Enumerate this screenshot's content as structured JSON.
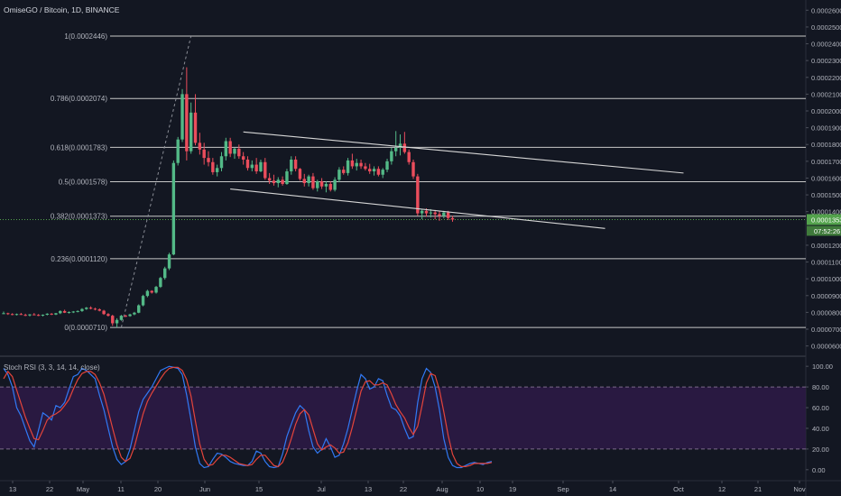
{
  "header": {
    "title": "OmiseGO / Bitcoin, 1D, BINANCE"
  },
  "colors": {
    "background": "#131722",
    "up": "#53b987",
    "down": "#eb4d5c",
    "fib_line": "#c8c8c8",
    "channel": "#d6d6d6",
    "rsi_k": "#3179f5",
    "rsi_d": "#e4443b",
    "rsi_band": "#2e1a47",
    "price_badge": "#53a24c"
  },
  "chart_data": [
    {
      "type": "candlestick",
      "title": "OmiseGO / Bitcoin, 1D, BINANCE",
      "y_axis_ticks": [
        "0.0002600",
        "0.0002500",
        "0.0002400",
        "0.0002300",
        "0.0002200",
        "0.0002100",
        "0.0002000",
        "0.0001900",
        "0.0001800",
        "0.0001700",
        "0.0001600",
        "0.0001500",
        "0.0001400",
        "0.0001353",
        "0.0001200",
        "0.0001100",
        "0.0001000",
        "0.0000900",
        "0.0000800",
        "0.0000700",
        "0.0000600"
      ],
      "ylim": [
        5.55e-05,
        0.000265
      ],
      "x_axis_ticks": [
        "13",
        "22",
        "May",
        "11",
        "20",
        "Jun",
        "15",
        "Jul",
        "13",
        "22",
        "Aug",
        "10",
        "19",
        "Sep",
        "14",
        "Oct",
        "12",
        "21",
        "Nov"
      ],
      "current_price": "0.0001353",
      "countdown": "07:52:26",
      "fib_levels": [
        {
          "label": "1(0.0002446)",
          "value": 0.0002446
        },
        {
          "label": "0.786(0.0002074)",
          "value": 0.0002074
        },
        {
          "label": "0.618(0.0001783)",
          "value": 0.0001783
        },
        {
          "label": "0.5(0.0001578)",
          "value": 0.0001578
        },
        {
          "label": "0.382(0.0001373)",
          "value": 0.0001373
        },
        {
          "label": "0.236(0.0001120)",
          "value": 0.000112
        },
        {
          "label": "0(0.0000710)",
          "value": 7.1e-05
        }
      ],
      "candles": [
        [
          7.95e-05,
          8.05e-05,
          7.9e-05,
          7.95e-05
        ],
        [
          7.95e-05,
          7.98e-05,
          7.85e-05,
          7.9e-05
        ],
        [
          7.9e-05,
          7.95e-05,
          7.83e-05,
          7.87e-05
        ],
        [
          7.87e-05,
          7.93e-05,
          7.82e-05,
          7.9e-05
        ],
        [
          7.9e-05,
          7.97e-05,
          7.86e-05,
          7.85e-05
        ],
        [
          7.85e-05,
          7.92e-05,
          7.78e-05,
          7.82e-05
        ],
        [
          7.82e-05,
          7.9e-05,
          7.76e-05,
          7.88e-05
        ],
        [
          7.88e-05,
          7.96e-05,
          7.84e-05,
          7.85e-05
        ],
        [
          7.85e-05,
          7.9e-05,
          7.78e-05,
          7.81e-05
        ],
        [
          7.81e-05,
          7.88e-05,
          7.76e-05,
          7.86e-05
        ],
        [
          7.86e-05,
          7.95e-05,
          7.82e-05,
          7.92e-05
        ],
        [
          7.92e-05,
          7.96e-05,
          7.84e-05,
          7.87e-05
        ],
        [
          7.87e-05,
          7.97e-05,
          7.84e-05,
          7.95e-05
        ],
        [
          7.95e-05,
          8.12e-05,
          7.9e-05,
          8.08e-05
        ],
        [
          8.08e-05,
          8.16e-05,
          7.96e-05,
          7.98e-05
        ],
        [
          7.98e-05,
          8.06e-05,
          7.93e-05,
          8.02e-05
        ],
        [
          8.02e-05,
          8.08e-05,
          7.96e-05,
          8.05e-05
        ],
        [
          8.05e-05,
          8.12e-05,
          8e-05,
          8.08e-05
        ],
        [
          8.08e-05,
          8.25e-05,
          8.03e-05,
          8.2e-05
        ],
        [
          8.2e-05,
          8.32e-05,
          8.15e-05,
          8.28e-05
        ],
        [
          8.28e-05,
          8.36e-05,
          8.18e-05,
          8.22e-05
        ],
        [
          8.22e-05,
          8.28e-05,
          8.12e-05,
          8.18e-05
        ],
        [
          8.18e-05,
          8.24e-05,
          8.06e-05,
          8.1e-05
        ],
        [
          8.1e-05,
          8.15e-05,
          7.85e-05,
          7.9e-05
        ],
        [
          7.9e-05,
          7.96e-05,
          7.75e-05,
          7.8e-05
        ],
        [
          7.8e-05,
          7.86e-05,
          7.2e-05,
          7.35e-05
        ],
        [
          7.35e-05,
          7.65e-05,
          7.1e-05,
          7.55e-05
        ],
        [
          7.55e-05,
          7.85e-05,
          7.5e-05,
          7.8e-05
        ],
        [
          7.8e-05,
          7.86e-05,
          7.72e-05,
          7.78e-05
        ],
        [
          7.78e-05,
          7.92e-05,
          7.74e-05,
          7.88e-05
        ],
        [
          7.88e-05,
          8.03e-05,
          7.83e-05,
          7.98e-05
        ],
        [
          7.98e-05,
          8.48e-05,
          7.95e-05,
          8.42e-05
        ],
        [
          8.42e-05,
          9.05e-05,
          8.36e-05,
          8.98e-05
        ],
        [
          8.98e-05,
          9.35e-05,
          8.9e-05,
          9.28e-05
        ],
        [
          9.28e-05,
          9.32e-05,
          9.12e-05,
          9.18e-05
        ],
        [
          9.18e-05,
          9.58e-05,
          9.12e-05,
          9.52e-05
        ],
        [
          9.52e-05,
          0.0001012,
          9.46e-05,
          0.0001005
        ],
        [
          0.0001005,
          0.0001072,
          9.95e-05,
          0.0001062
        ],
        [
          0.0001062,
          0.0001155,
          0.0001052,
          0.0001145
        ],
        [
          0.0001145,
          0.0001705,
          0.000114,
          0.000169
        ],
        [
          0.000169,
          0.0001845,
          0.0001675,
          0.000183
        ],
        [
          0.000183,
          0.000213,
          0.0001815,
          0.00021
        ],
        [
          0.00021,
          0.000226,
          0.0001705,
          0.000176
        ],
        [
          0.000176,
          0.000205,
          0.0001745,
          0.000199
        ],
        [
          0.000199,
          0.00021,
          0.0001795,
          0.000181
        ],
        [
          0.000181,
          0.000187,
          0.000174,
          0.000177
        ],
        [
          0.000177,
          0.000181,
          0.000168,
          0.000172
        ],
        [
          0.000172,
          0.000176,
          0.000167,
          0.0001695
        ],
        [
          0.0001695,
          0.000172,
          0.000162,
          0.0001635
        ],
        [
          0.0001635,
          0.000168,
          0.000161,
          0.000166
        ],
        [
          0.000166,
          0.0001755,
          0.000164,
          0.000173
        ],
        [
          0.000173,
          0.000184,
          0.0001705,
          0.000182
        ],
        [
          0.000182,
          0.000184,
          0.0001725,
          0.0001745
        ],
        [
          0.0001745,
          0.000178,
          0.0001715,
          0.0001775
        ],
        [
          0.0001775,
          0.00018,
          0.0001715,
          0.000173
        ],
        [
          0.000173,
          0.0001755,
          0.000168,
          0.000171
        ],
        [
          0.000171,
          0.000173,
          0.0001645,
          0.000166
        ],
        [
          0.000166,
          0.0001705,
          0.000164,
          0.000168
        ],
        [
          0.000168,
          0.000172,
          0.0001625,
          0.000164
        ],
        [
          0.000164,
          0.000171,
          0.0001635,
          0.0001695
        ],
        [
          0.0001695,
          0.000172,
          0.000159,
          0.00016
        ],
        [
          0.00016,
          0.000163,
          0.0001565,
          0.0001585
        ],
        [
          0.0001585,
          0.000162,
          0.0001555,
          0.000157
        ],
        [
          0.000157,
          0.0001605,
          0.0001545,
          0.000159
        ],
        [
          0.000159,
          0.000161,
          0.0001555,
          0.0001565
        ],
        [
          0.0001565,
          0.0001655,
          0.000156,
          0.000164
        ],
        [
          0.000164,
          0.000173,
          0.000162,
          0.000171
        ],
        [
          0.000171,
          0.000173,
          0.000164,
          0.0001655
        ],
        [
          0.0001655,
          0.000166,
          0.0001585,
          0.0001595
        ],
        [
          0.0001595,
          0.0001625,
          0.000155,
          0.000157
        ],
        [
          0.000157,
          0.000162,
          0.000155,
          0.000161
        ],
        [
          0.000161,
          0.000163,
          0.000153,
          0.000154
        ],
        [
          0.000154,
          0.000159,
          0.000152,
          0.000158
        ],
        [
          0.000158,
          0.00016,
          0.0001535,
          0.000155
        ],
        [
          0.000155,
          0.000158,
          0.0001515,
          0.0001565
        ],
        [
          0.0001565,
          0.000158,
          0.000152,
          0.000153
        ],
        [
          0.000153,
          0.0001605,
          0.000152,
          0.000159
        ],
        [
          0.000159,
          0.0001665,
          0.0001575,
          0.000165
        ],
        [
          0.000165,
          0.000167,
          0.000162,
          0.000163
        ],
        [
          0.000163,
          0.000172,
          0.0001615,
          0.0001705
        ],
        [
          0.0001705,
          0.0001745,
          0.0001655,
          0.000167
        ],
        [
          0.000167,
          0.0001715,
          0.0001645,
          0.000169
        ],
        [
          0.000169,
          0.000171,
          0.0001655,
          0.000167
        ],
        [
          0.000167,
          0.000169,
          0.0001645,
          0.0001655
        ],
        [
          0.0001655,
          0.0001685,
          0.0001625,
          0.000164
        ],
        [
          0.000164,
          0.000167,
          0.0001615,
          0.0001655
        ],
        [
          0.0001655,
          0.000167,
          0.000161,
          0.000162
        ],
        [
          0.000162,
          0.000166,
          0.00016,
          0.000165
        ],
        [
          0.000165,
          0.0001715,
          0.0001635,
          0.00017
        ],
        [
          0.00017,
          0.000178,
          0.000168,
          0.000176
        ],
        [
          0.000176,
          0.000188,
          0.000173,
          0.000178
        ],
        [
          0.000178,
          0.000186,
          0.0001735,
          0.0001805
        ],
        [
          0.0001805,
          0.0001875,
          0.0001745,
          0.0001755
        ],
        [
          0.0001755,
          0.000177,
          0.000168,
          0.0001695
        ],
        [
          0.0001695,
          0.000171,
          0.0001595,
          0.000161
        ],
        [
          0.000161,
          0.0001625,
          0.0001375,
          0.000139
        ],
        [
          0.000139,
          0.0001415,
          0.0001355,
          0.0001405
        ],
        [
          0.0001405,
          0.000142,
          0.000137,
          0.000139
        ],
        [
          0.000139,
          0.0001415,
          0.0001365,
          0.0001395
        ],
        [
          0.0001395,
          0.000141,
          0.0001355,
          0.0001385
        ],
        [
          0.0001385,
          0.0001405,
          0.0001345,
          0.0001375
        ],
        [
          0.0001375,
          0.0001405,
          0.000136,
          0.0001395
        ],
        [
          0.0001395,
          0.0001405,
          0.000135,
          0.0001362
        ],
        [
          0.0001362,
          0.0001375,
          0.000134,
          0.0001353
        ]
      ],
      "fib_anchor_line": {
        "from": {
          "bar": 27,
          "value": 7.1e-05
        },
        "to": {
          "bar": 43,
          "value": 0.0002446
        }
      },
      "channel": [
        {
          "from": {
            "bar": 55,
            "value": 0.0001875
          },
          "to": {
            "bar": 156,
            "value": 0.000163
          }
        },
        {
          "from": {
            "bar": 52,
            "value": 0.0001535
          },
          "to": {
            "bar": 138,
            "value": 0.00013
          }
        }
      ]
    },
    {
      "type": "line",
      "title": "Stoch RSI (3, 3, 14, 14, close)",
      "ylim": [
        -8,
        108
      ],
      "y_axis_ticks": [
        "100.00",
        "80.00",
        "60.00",
        "40.00",
        "20.00",
        "0.00"
      ],
      "band": [
        20,
        80
      ],
      "series": [
        {
          "key": "k",
          "values": [
            98,
            92,
            80,
            60,
            52,
            40,
            28,
            22,
            38,
            55,
            52,
            48,
            62,
            60,
            65,
            78,
            90,
            92,
            98,
            96,
            92,
            88,
            72,
            58,
            40,
            22,
            10,
            5,
            8,
            20,
            38,
            56,
            68,
            74,
            80,
            88,
            96,
            98,
            100,
            99,
            98,
            92,
            72,
            48,
            22,
            6,
            2,
            3,
            10,
            16,
            15,
            12,
            8,
            6,
            5,
            4,
            4,
            8,
            18,
            16,
            8,
            3,
            2,
            3,
            15,
            32,
            44,
            55,
            62,
            58,
            38,
            22,
            16,
            20,
            30,
            22,
            12,
            14,
            25,
            40,
            58,
            76,
            92,
            88,
            78,
            80,
            88,
            86,
            72,
            60,
            58,
            52,
            40,
            30,
            32,
            65,
            88,
            98,
            94,
            80,
            58,
            30,
            12,
            4,
            2,
            2,
            4,
            6,
            7,
            6,
            5,
            7,
            8
          ]
        },
        {
          "key": "d",
          "values": [
            88,
            95,
            90,
            77,
            64,
            51,
            40,
            30,
            29,
            38,
            48,
            52,
            54,
            57,
            62,
            68,
            78,
            87,
            93,
            95,
            95,
            92,
            84,
            73,
            57,
            40,
            24,
            12,
            8,
            11,
            22,
            38,
            54,
            66,
            74,
            81,
            88,
            94,
            98,
            99,
            99,
            96,
            87,
            71,
            47,
            25,
            10,
            4,
            5,
            10,
            14,
            14,
            12,
            9,
            6,
            5,
            4,
            5,
            10,
            14,
            14,
            9,
            4,
            3,
            7,
            17,
            30,
            44,
            54,
            58,
            53,
            39,
            25,
            19,
            22,
            24,
            21,
            16,
            17,
            26,
            41,
            58,
            76,
            85,
            86,
            82,
            82,
            84,
            82,
            73,
            63,
            56,
            50,
            41,
            34,
            42,
            62,
            84,
            93,
            91,
            77,
            56,
            33,
            15,
            6,
            3,
            3,
            4,
            6,
            6,
            6,
            6,
            7
          ]
        }
      ]
    }
  ]
}
